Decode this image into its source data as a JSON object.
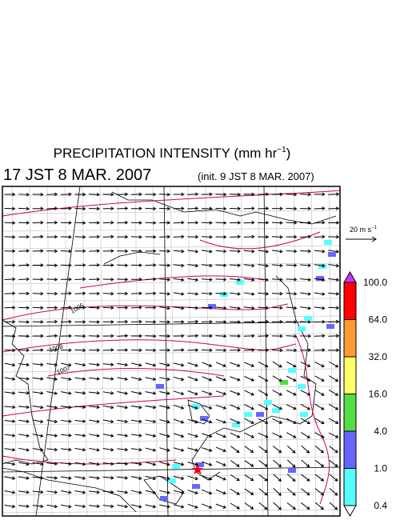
{
  "header": {
    "title": {
      "text": "PRECIPITATION INTENSITY (mm hr",
      "sup": "−1",
      "after": ")"
    },
    "valid_time": "17 JST 8 MAR. 2007",
    "init_time": "(init. 9 JST 8 MAR. 2007)"
  },
  "vector_reference": {
    "text": "20 m s",
    "sup": "−1"
  },
  "contour_labels": [
    "1006",
    "1008",
    "1007"
  ],
  "colorbar": {
    "items": [
      {
        "label": "100.0",
        "color": "#ff0000"
      },
      {
        "label": "64.0",
        "color": "#ff9933"
      },
      {
        "label": "32.0",
        "color": "#ffff66"
      },
      {
        "label": "16.0",
        "color": "#55dd44"
      },
      {
        "label": "4.0",
        "color": "#6666ff"
      },
      {
        "label": "1.0",
        "color": "#55ffff"
      },
      {
        "label": "0.4",
        "color": "#ffffff"
      }
    ],
    "over_color": "#cc33ff"
  }
}
